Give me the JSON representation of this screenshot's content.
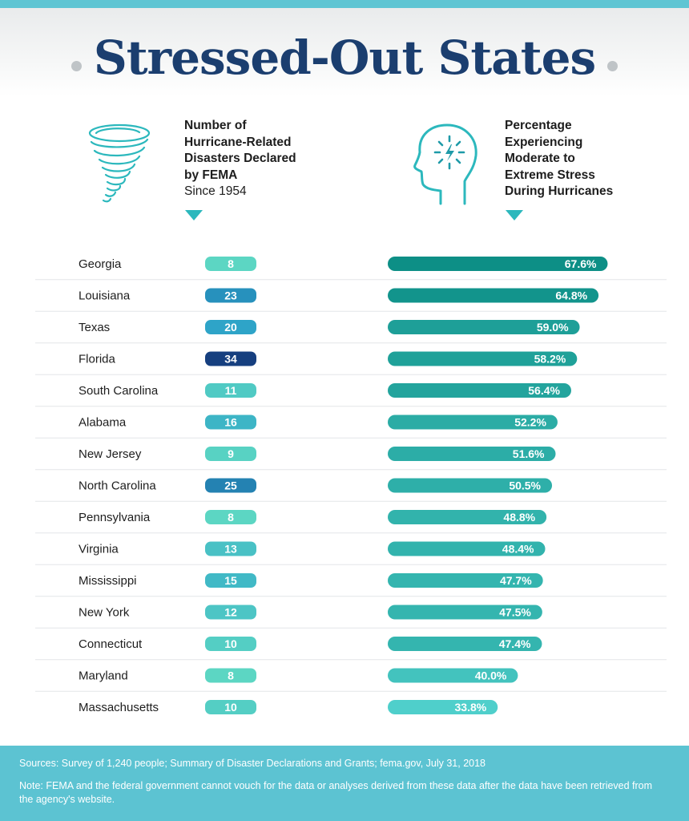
{
  "title": "Stressed-Out States",
  "icons": {
    "left": "tornado-icon",
    "right": "head-stress-icon"
  },
  "left_header": {
    "lines": [
      "Number of",
      "Hurricane-Related",
      "Disasters Declared",
      "by FEMA"
    ],
    "sub": "Since 1954"
  },
  "right_header": {
    "lines": [
      "Percentage",
      "Experiencing",
      "Moderate to",
      "Extreme Stress",
      "During Hurricanes"
    ]
  },
  "chart_data": {
    "type": "table",
    "title": "Stressed-Out States",
    "categories": [
      "Georgia",
      "Louisiana",
      "Texas",
      "Florida",
      "South Carolina",
      "Alabama",
      "New Jersey",
      "North Carolina",
      "Pennsylvania",
      "Virginia",
      "Mississippi",
      "New York",
      "Connecticut",
      "Maryland",
      "Massachusetts"
    ],
    "series": [
      {
        "name": "Number of Hurricane-Related Disasters Declared by FEMA Since 1954",
        "values": [
          8,
          23,
          20,
          34,
          11,
          16,
          9,
          25,
          8,
          13,
          15,
          12,
          10,
          8,
          10
        ],
        "labels": [
          "8",
          "23",
          "20",
          "34",
          "11",
          "16",
          "9",
          "25",
          "8",
          "13",
          "15",
          "12",
          "10",
          "8",
          "10"
        ]
      },
      {
        "name": "Percentage Experiencing Moderate to Extreme Stress During Hurricanes",
        "values": [
          67.6,
          64.8,
          59.0,
          58.2,
          56.4,
          52.2,
          51.6,
          50.5,
          48.8,
          48.4,
          47.7,
          47.5,
          47.4,
          40.0,
          33.8
        ],
        "labels": [
          "67.6%",
          "64.8%",
          "59.0%",
          "58.2%",
          "56.4%",
          "52.2%",
          "51.6%",
          "50.5%",
          "48.8%",
          "48.4%",
          "47.7%",
          "47.5%",
          "47.4%",
          "40.0%",
          "33.8%"
        ]
      }
    ],
    "xlim": [
      0,
      100
    ]
  },
  "colors": {
    "title": "#1b3e6f",
    "accent": "#2cb8bd",
    "footer_bg": "#5cc3d2",
    "pill_low": "#5cd6c3",
    "pill_mid": "#2aa0c8",
    "pill_high": "#163f7f",
    "bar_high": "#0d8f86",
    "bar_low": "#4fcfcb"
  },
  "footer": {
    "sources": "Sources: Survey of 1,240 people; Summary of Disaster Declarations and Grants; fema.gov, July 31, 2018",
    "note": "Note: FEMA and the federal government cannot vouch for the data or analyses derived from these data after the data have been retrieved from the agency's website."
  }
}
